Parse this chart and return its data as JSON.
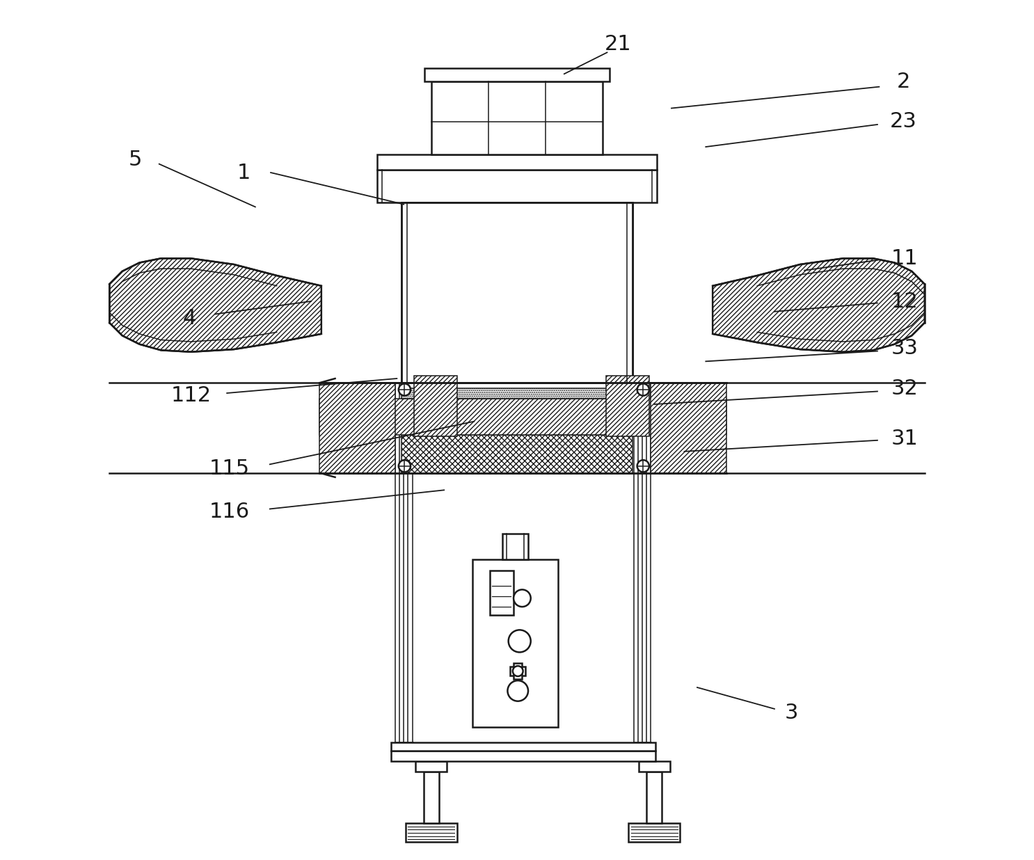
{
  "bg_color": "#ffffff",
  "line_color": "#1a1a1a",
  "figsize": [
    14.86,
    12.36
  ],
  "dpi": 100,
  "label_fs": 22,
  "lw_main": 1.8,
  "lw_thin": 1.1,
  "lw_thick": 2.0
}
